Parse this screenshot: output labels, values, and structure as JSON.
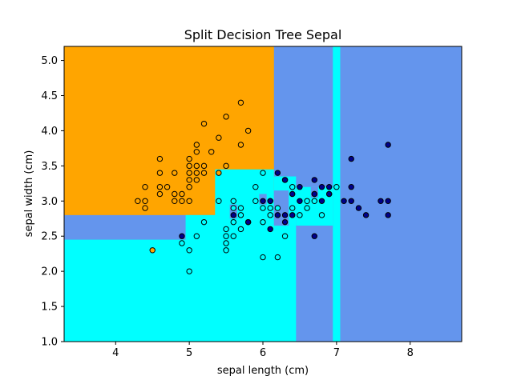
{
  "chart_data": {
    "type": "scatter",
    "title": "Split Decision Tree Sepal",
    "xlabel": "sepal length (cm)",
    "ylabel": "sepal width (cm)",
    "xlim": [
      3.3,
      8.7
    ],
    "ylim": [
      1.0,
      5.2
    ],
    "x_ticks": [
      4,
      5,
      6,
      7,
      8
    ],
    "y_ticks": [
      1.0,
      1.5,
      2.0,
      2.5,
      3.0,
      3.5,
      4.0,
      4.5,
      5.0
    ],
    "grid": false,
    "region_colors": {
      "class_0": "#ffa500",
      "class_1": "#00ffff",
      "class_2": "#6495ed"
    },
    "point_colors": {
      "class_0": "#ffa500",
      "class_1": "#00ffff",
      "class_2": "#00008b"
    },
    "decision_regions": [
      {
        "class": "class_2",
        "x": [
          3.3,
          8.7
        ],
        "y": [
          1.0,
          5.2
        ]
      },
      {
        "class": "class_0",
        "x": [
          3.3,
          6.15
        ],
        "y": [
          2.8,
          5.2
        ]
      },
      {
        "class": "class_1",
        "x": [
          3.3,
          5.45
        ],
        "y": [
          1.0,
          2.45
        ]
      },
      {
        "class": "class_1",
        "x": [
          4.95,
          5.45
        ],
        "y": [
          1.0,
          2.8
        ]
      },
      {
        "class": "class_1",
        "x": [
          5.45,
          6.45
        ],
        "y": [
          1.0,
          2.65
        ]
      },
      {
        "class": "class_1",
        "x": [
          5.35,
          6.15
        ],
        "y": [
          2.65,
          3.45
        ]
      },
      {
        "class": "class_1",
        "x": [
          6.15,
          6.45
        ],
        "y": [
          2.65,
          3.35
        ]
      },
      {
        "class": "class_1",
        "x": [
          6.45,
          6.95
        ],
        "y": [
          2.65,
          3.2
        ]
      },
      {
        "class": "class_1",
        "x": [
          6.95,
          7.05
        ],
        "y": [
          1.0,
          5.2
        ]
      },
      {
        "class": "class_2",
        "x": [
          5.55,
          5.65
        ],
        "y": [
          2.75,
          2.95
        ]
      },
      {
        "class": "class_2",
        "x": [
          5.95,
          6.05
        ],
        "y": [
          2.95,
          3.1
        ]
      },
      {
        "class": "class_2",
        "x": [
          6.15,
          6.35
        ],
        "y": [
          2.65,
          3.15
        ]
      },
      {
        "class": "class_2",
        "x": [
          6.65,
          6.75
        ],
        "y": [
          3.05,
          3.2
        ]
      }
    ],
    "series": [
      {
        "class": "class_0",
        "points": [
          [
            4.3,
            3.0
          ],
          [
            4.4,
            2.9
          ],
          [
            4.4,
            3.0
          ],
          [
            4.4,
            3.2
          ],
          [
            4.5,
            2.3
          ],
          [
            4.6,
            3.1
          ],
          [
            4.6,
            3.2
          ],
          [
            4.6,
            3.4
          ],
          [
            4.6,
            3.6
          ],
          [
            4.7,
            3.2
          ],
          [
            4.8,
            3.0
          ],
          [
            4.8,
            3.1
          ],
          [
            4.8,
            3.4
          ],
          [
            4.9,
            3.0
          ],
          [
            4.9,
            3.1
          ],
          [
            5.0,
            3.0
          ],
          [
            5.0,
            3.2
          ],
          [
            5.0,
            3.3
          ],
          [
            5.0,
            3.4
          ],
          [
            5.0,
            3.5
          ],
          [
            5.0,
            3.6
          ],
          [
            5.1,
            3.3
          ],
          [
            5.1,
            3.4
          ],
          [
            5.1,
            3.5
          ],
          [
            5.1,
            3.7
          ],
          [
            5.1,
            3.8
          ],
          [
            5.2,
            3.4
          ],
          [
            5.2,
            3.5
          ],
          [
            5.2,
            4.1
          ],
          [
            5.3,
            3.7
          ],
          [
            5.4,
            3.4
          ],
          [
            5.4,
            3.9
          ],
          [
            5.5,
            3.5
          ],
          [
            5.5,
            4.2
          ],
          [
            5.7,
            3.8
          ],
          [
            5.7,
            4.4
          ],
          [
            5.8,
            4.0
          ]
        ]
      },
      {
        "class": "class_1",
        "points": [
          [
            4.9,
            2.4
          ],
          [
            5.0,
            2.0
          ],
          [
            5.0,
            2.3
          ],
          [
            5.1,
            2.5
          ],
          [
            5.2,
            2.7
          ],
          [
            5.4,
            3.0
          ],
          [
            5.5,
            2.3
          ],
          [
            5.5,
            2.4
          ],
          [
            5.5,
            2.5
          ],
          [
            5.5,
            2.6
          ],
          [
            5.6,
            2.5
          ],
          [
            5.6,
            2.7
          ],
          [
            5.6,
            2.9
          ],
          [
            5.6,
            3.0
          ],
          [
            5.7,
            2.6
          ],
          [
            5.7,
            2.8
          ],
          [
            5.7,
            2.9
          ],
          [
            5.8,
            2.7
          ],
          [
            5.9,
            3.0
          ],
          [
            5.9,
            3.2
          ],
          [
            6.0,
            2.2
          ],
          [
            6.0,
            2.7
          ],
          [
            6.0,
            2.9
          ],
          [
            6.0,
            3.4
          ],
          [
            6.1,
            2.8
          ],
          [
            6.1,
            2.9
          ],
          [
            6.1,
            3.0
          ],
          [
            6.2,
            2.2
          ],
          [
            6.2,
            2.9
          ],
          [
            6.3,
            2.5
          ],
          [
            6.3,
            3.3
          ],
          [
            6.4,
            2.9
          ],
          [
            6.4,
            3.2
          ],
          [
            6.5,
            2.8
          ],
          [
            6.6,
            2.9
          ],
          [
            6.6,
            3.0
          ],
          [
            6.7,
            3.0
          ],
          [
            6.7,
            3.1
          ],
          [
            6.8,
            2.8
          ],
          [
            6.9,
            3.1
          ],
          [
            7.0,
            3.2
          ]
        ]
      },
      {
        "class": "class_2",
        "points": [
          [
            4.9,
            2.5
          ],
          [
            5.6,
            2.8
          ],
          [
            5.8,
            2.7
          ],
          [
            6.0,
            3.0
          ],
          [
            6.1,
            2.6
          ],
          [
            6.1,
            3.0
          ],
          [
            6.2,
            2.8
          ],
          [
            6.2,
            3.4
          ],
          [
            6.3,
            2.7
          ],
          [
            6.3,
            2.8
          ],
          [
            6.3,
            3.3
          ],
          [
            6.4,
            2.8
          ],
          [
            6.4,
            3.1
          ],
          [
            6.5,
            3.0
          ],
          [
            6.5,
            3.2
          ],
          [
            6.7,
            2.5
          ],
          [
            6.7,
            3.1
          ],
          [
            6.7,
            3.3
          ],
          [
            6.8,
            3.0
          ],
          [
            6.8,
            3.2
          ],
          [
            6.9,
            3.1
          ],
          [
            6.9,
            3.2
          ],
          [
            7.1,
            3.0
          ],
          [
            7.2,
            3.0
          ],
          [
            7.2,
            3.2
          ],
          [
            7.2,
            3.6
          ],
          [
            7.3,
            2.9
          ],
          [
            7.4,
            2.8
          ],
          [
            7.6,
            3.0
          ],
          [
            7.7,
            2.8
          ],
          [
            7.7,
            3.0
          ],
          [
            7.7,
            3.8
          ]
        ]
      }
    ]
  }
}
